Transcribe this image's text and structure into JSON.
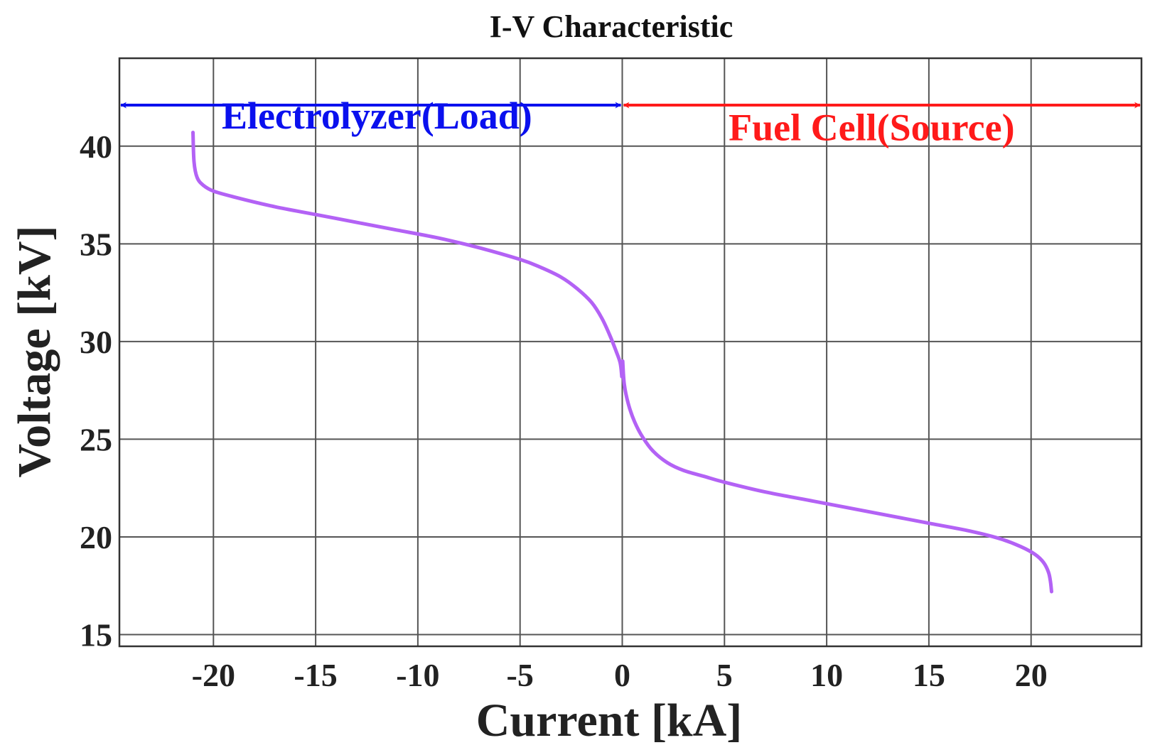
{
  "chart_data": {
    "type": "line",
    "title": "I-V Characteristic",
    "xlabel": "Current [kA]",
    "ylabel": "Voltage [kV]",
    "xlim": [
      -24.6,
      25.4
    ],
    "ylim": [
      14.4,
      44.5
    ],
    "xticks": [
      -20,
      -15,
      -10,
      -5,
      0,
      5,
      10,
      15,
      20
    ],
    "xtick_labels": [
      "-20",
      "-15",
      "-10",
      "-5",
      "0",
      "5",
      "10",
      "15",
      "20"
    ],
    "yticks": [
      15,
      20,
      25,
      30,
      35,
      40
    ],
    "ytick_labels": [
      "15",
      "20",
      "25",
      "30",
      "35",
      "40"
    ],
    "grid": true,
    "series": [
      {
        "color": "#b362f5",
        "x": [
          -21.0,
          -20.95,
          -20.8,
          -20.5,
          -20.0,
          -19.0,
          -17.0,
          -15.0,
          -13.0,
          -11.0,
          -9.0,
          -7.0,
          -5.0,
          -4.0,
          -3.0,
          -2.2,
          -1.5,
          -1.0,
          -0.6,
          -0.3,
          -0.1,
          -0.02
        ],
        "y": [
          40.7,
          39.2,
          38.4,
          38.0,
          37.7,
          37.4,
          36.9,
          36.5,
          36.1,
          35.7,
          35.3,
          34.8,
          34.2,
          33.8,
          33.3,
          32.7,
          32.0,
          31.2,
          30.3,
          29.5,
          28.9,
          28.2
        ]
      },
      {
        "color": "#b362f5",
        "x": [
          0.02,
          0.1,
          0.3,
          0.6,
          1.0,
          1.5,
          2.2,
          3.0,
          4.0,
          5.0,
          7.0,
          9.0,
          11.0,
          13.0,
          15.0,
          17.0,
          18.5,
          19.5,
          20.2,
          20.6,
          20.85,
          20.95,
          21.0
        ],
        "y": [
          29.0,
          27.8,
          26.8,
          25.9,
          25.1,
          24.4,
          23.8,
          23.4,
          23.1,
          22.8,
          22.3,
          21.9,
          21.5,
          21.1,
          20.7,
          20.3,
          19.9,
          19.5,
          19.1,
          18.7,
          18.2,
          17.7,
          17.2
        ]
      }
    ],
    "annotations": [
      {
        "text": "Electrolyzer(Load)",
        "color": "#0a10ee",
        "arrow_from": -24.6,
        "arrow_to": 0,
        "arrow_y": 42.1,
        "text_x": -12.0,
        "text_y": 40.9
      },
      {
        "text": "Fuel Cell(Source)",
        "color": "#ff1a1a",
        "arrow_from": 0,
        "arrow_to": 25.4,
        "arrow_y": 42.1,
        "text_x": 12.2,
        "text_y": 40.3
      }
    ]
  }
}
